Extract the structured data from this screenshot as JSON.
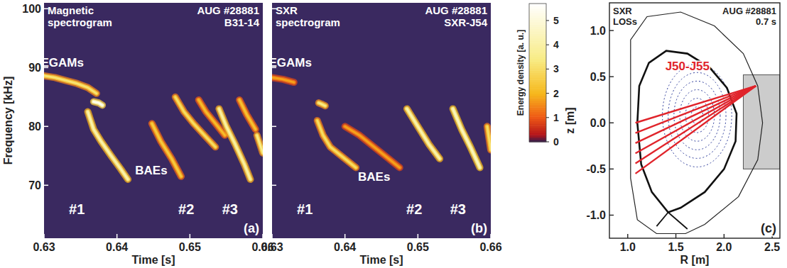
{
  "chart_data": [
    {
      "type": "spectrogram",
      "title": "Magnetic spectrogram",
      "shot": "AUG #28881",
      "channel": "B31-14",
      "label": "(a)",
      "x_label": "Time [s]",
      "y_label": "Frequency [kHz]",
      "xlim": [
        0.63,
        0.66
      ],
      "xticks": [
        0.63,
        0.64,
        0.65,
        0.66
      ],
      "ylim": [
        61,
        101
      ],
      "yticks": [
        70,
        80,
        90,
        100
      ],
      "ridges": [
        {
          "x": [
            0.63,
            0.6315,
            0.633,
            0.6345,
            0.636,
            0.6372
          ],
          "values": [
            88.6,
            88.3,
            87.8,
            87.3,
            86.6,
            85.6
          ],
          "energy": 3.2
        },
        {
          "x": [
            0.6368,
            0.6375,
            0.638
          ],
          "values": [
            84.2,
            84.0,
            83.6
          ],
          "energy": 5.5
        },
        {
          "x": [
            0.636,
            0.6368,
            0.6378,
            0.6392,
            0.6405,
            0.6415
          ],
          "values": [
            82.5,
            79.5,
            77.5,
            75.0,
            72.8,
            71.0
          ],
          "energy": 4.2
        },
        {
          "x": [
            0.6448,
            0.646,
            0.6475,
            0.6488
          ],
          "values": [
            80.5,
            77.5,
            74.5,
            71.5
          ],
          "energy": 2.5
        },
        {
          "x": [
            0.648,
            0.6492,
            0.6505,
            0.652,
            0.6535
          ],
          "values": [
            85.0,
            82.5,
            80.5,
            78.5,
            76.5
          ],
          "energy": 3.0
        },
        {
          "x": [
            0.6512,
            0.6522,
            0.6535,
            0.6548
          ],
          "values": [
            84.5,
            82.5,
            80.5,
            78.5
          ],
          "energy": 2.2
        },
        {
          "x": [
            0.654,
            0.655,
            0.6562,
            0.6575,
            0.6583
          ],
          "values": [
            83.0,
            80.0,
            77.0,
            73.5,
            71.0
          ],
          "energy": 4.0
        },
        {
          "x": [
            0.6568,
            0.6578,
            0.659
          ],
          "values": [
            84.5,
            82.0,
            79.5
          ],
          "energy": 2.3
        },
        {
          "x": [
            0.6592,
            0.66
          ],
          "values": [
            78.5,
            75.5
          ],
          "energy": 3.5
        }
      ],
      "annotations": [
        {
          "text": "EGAMs",
          "x": 0.6325,
          "y": 90.9
        },
        {
          "text": "BAEs",
          "x": 0.6447,
          "y": 72.6
        },
        {
          "text": "#1",
          "x": 0.6345,
          "y": 66
        },
        {
          "text": "#2",
          "x": 0.6495,
          "y": 66
        },
        {
          "text": "#3",
          "x": 0.6555,
          "y": 66
        }
      ]
    },
    {
      "type": "spectrogram",
      "title": "SXR spectrogram",
      "shot": "AUG #28881",
      "channel": "SXR-J54",
      "label": "(b)",
      "x_label": "Time [s]",
      "tick_labels": "x",
      "xlim": [
        0.63,
        0.66
      ],
      "xticks": [
        0.63,
        0.64,
        0.65,
        0.66
      ],
      "ylim": [
        61,
        101
      ],
      "yticks": [
        70,
        80,
        90,
        100
      ],
      "ridges": [
        {
          "x": [
            0.63,
            0.6315,
            0.633
          ],
          "values": [
            88.3,
            88.0,
            87.5
          ],
          "energy": 1.8
        },
        {
          "x": [
            0.6364,
            0.6368,
            0.6373
          ],
          "values": [
            84.0,
            83.8,
            83.5
          ],
          "energy": 3.5
        },
        {
          "x": [
            0.6362,
            0.637,
            0.638,
            0.6395,
            0.6415
          ],
          "values": [
            81.0,
            78.5,
            76.5,
            75.0,
            73.0
          ],
          "energy": 3.0
        },
        {
          "x": [
            0.64,
            0.642,
            0.644,
            0.646,
            0.6475
          ],
          "values": [
            80.0,
            78.5,
            76.5,
            74.5,
            73.0
          ],
          "energy": 1.8
        },
        {
          "x": [
            0.6485,
            0.65,
            0.6515,
            0.653
          ],
          "values": [
            83.0,
            80.0,
            77.0,
            74.5
          ],
          "energy": 4.2
        },
        {
          "x": [
            0.6548,
            0.656,
            0.6572,
            0.6585
          ],
          "values": [
            83.0,
            79.5,
            76.5,
            73.0
          ],
          "energy": 4.5
        },
        {
          "x": [
            0.6595,
            0.66
          ],
          "values": [
            80.0,
            76.0
          ],
          "energy": 3.0
        }
      ],
      "annotations": [
        {
          "text": "EGAMs",
          "x": 0.6325,
          "y": 90.9
        },
        {
          "text": "BAEs",
          "x": 0.644,
          "y": 71.5
        },
        {
          "text": "#1",
          "x": 0.6345,
          "y": 66
        },
        {
          "text": "#2",
          "x": 0.6495,
          "y": 66
        },
        {
          "text": "#3",
          "x": 0.6555,
          "y": 66
        }
      ],
      "color_bar": {
        "label": "Energy density [a. u.]",
        "lim": [
          0,
          5.7
        ],
        "ticks": [
          0,
          1,
          2,
          3,
          4,
          5
        ]
      }
    },
    {
      "type": "cross_section",
      "title": "SXR LOSs",
      "shot": "AUG #28881",
      "time": "0.7 s",
      "label": "(c)",
      "x_label": "R [m]",
      "y_label": "z [m]",
      "xlim": [
        0.81,
        2.58
      ],
      "xticks": [
        {
          "value": 1.0,
          "label": "1.0"
        },
        1.5,
        {
          "value": 2.0,
          "label": "2.0"
        },
        2.5
      ],
      "ylim": [
        -1.25,
        1.3
      ],
      "yticks": [
        {
          "value": -1.0,
          "label": "-1.0"
        },
        -0.5,
        {
          "value": 0.0,
          "label": "0.0"
        },
        0.5,
        {
          "value": 1.0,
          "label": "1.0"
        }
      ],
      "port": {
        "R": [
          2.2,
          2.58
        ],
        "z": [
          -0.5,
          0.52
        ]
      },
      "wall": {
        "R": [
          1.03,
          1.03,
          1.2,
          1.55,
          1.9,
          2.2,
          2.35,
          2.4,
          2.35,
          2.15,
          1.8,
          1.6,
          1.3,
          1.1,
          1.03,
          1.03
        ],
        "z": [
          0.0,
          0.9,
          1.15,
          1.2,
          1.05,
          0.75,
          0.4,
          0.0,
          -0.4,
          -0.8,
          -1.1,
          -1.2,
          -1.2,
          -1.05,
          -0.6,
          0.0
        ]
      },
      "flux_surfaces": {
        "R0": 1.72,
        "z0": 0.08,
        "kappa": 1.55,
        "a": [
          0.06,
          0.12,
          0.18,
          0.24,
          0.3,
          0.36
        ]
      },
      "separatrix": [
        {
          "R": [
            1.1,
            1.12,
            1.22,
            1.4,
            1.62,
            1.85,
            2.03,
            2.13,
            2.12,
            2.0,
            1.8,
            1.55,
            1.42,
            1.25,
            1.14,
            1.1
          ],
          "z": [
            0.0,
            0.4,
            0.65,
            0.78,
            0.75,
            0.6,
            0.38,
            0.1,
            -0.2,
            -0.5,
            -0.75,
            -0.92,
            -0.97,
            -0.75,
            -0.45,
            0.0
          ]
        },
        {
          "R": [
            1.42,
            1.3
          ],
          "z": [
            -0.97,
            -1.12
          ]
        },
        {
          "R": [
            1.42,
            1.62
          ],
          "z": [
            -0.97,
            -1.15
          ]
        }
      ],
      "los": {
        "R0": 2.33,
        "z0": 0.4,
        "R1": [
          1.08,
          1.08,
          1.08,
          1.08,
          1.08,
          1.08
        ],
        "z1": [
          0.0,
          -0.11,
          -0.22,
          -0.33,
          -0.44,
          -0.55
        ],
        "label": "J50-J55",
        "label_x": 1.62,
        "label_y": 0.62
      }
    }
  ]
}
